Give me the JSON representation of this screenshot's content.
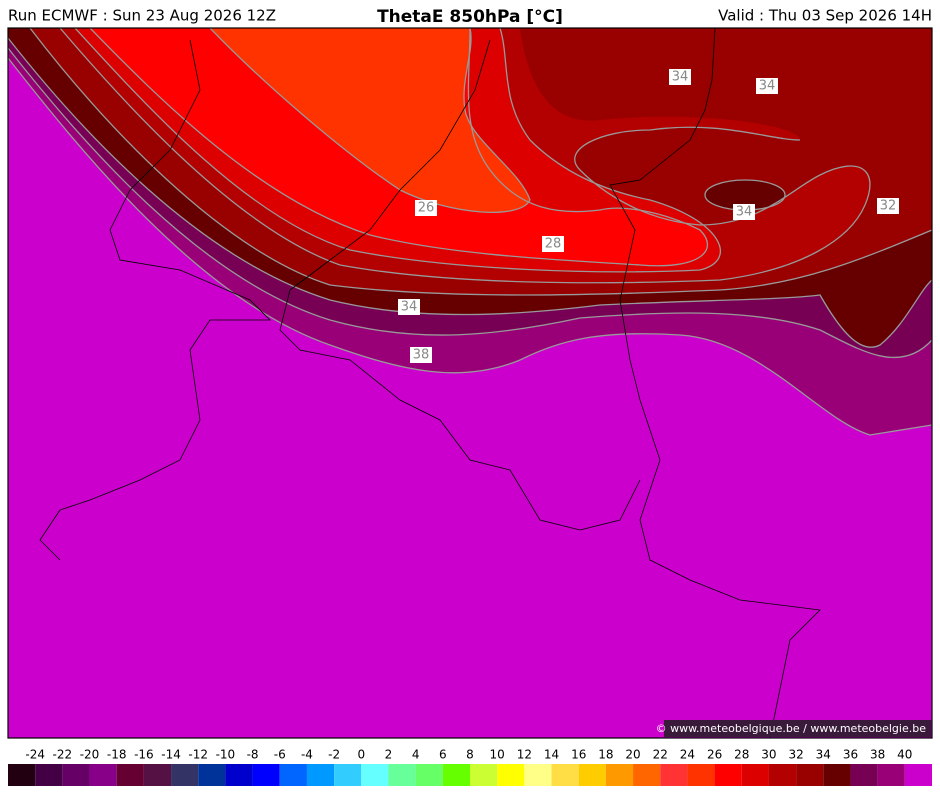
{
  "header": {
    "left": "Run ECMWF : Sun 23 Aug 2026 12Z",
    "title": "ThetaE 850hPa [°C]",
    "right": "Valid : Thu 03 Sep 2026 14H"
  },
  "map": {
    "contour_labels": [
      34,
      34,
      26,
      28,
      34,
      32,
      34,
      38
    ]
  },
  "credit": "© www.meteobelgique.be / www.meteobelgie.be",
  "colorbar": {
    "labels": [
      -24,
      -22,
      -20,
      -18,
      -16,
      -14,
      -12,
      -10,
      -8,
      -6,
      -4,
      -2,
      0,
      2,
      4,
      6,
      8,
      10,
      12,
      14,
      16,
      18,
      20,
      22,
      24,
      26,
      28,
      30,
      32,
      34,
      36,
      38,
      40
    ],
    "colors": [
      "#220011",
      "#440044",
      "#660066",
      "#880088",
      "#660033",
      "#551144",
      "#333366",
      "#003399",
      "#0000cc",
      "#0000ff",
      "#0066ff",
      "#0099ff",
      "#33ccff",
      "#66ffff",
      "#66ff99",
      "#66ff66",
      "#66ff00",
      "#ccff33",
      "#ffff00",
      "#ffff88",
      "#ffdd44",
      "#ffcc00",
      "#ff9900",
      "#ff6600",
      "#ff3333",
      "#ff3300",
      "#ff0000",
      "#dd0000",
      "#b30000",
      "#990000",
      "#660000",
      "#770055",
      "#990077",
      "#cc00cc"
    ]
  }
}
